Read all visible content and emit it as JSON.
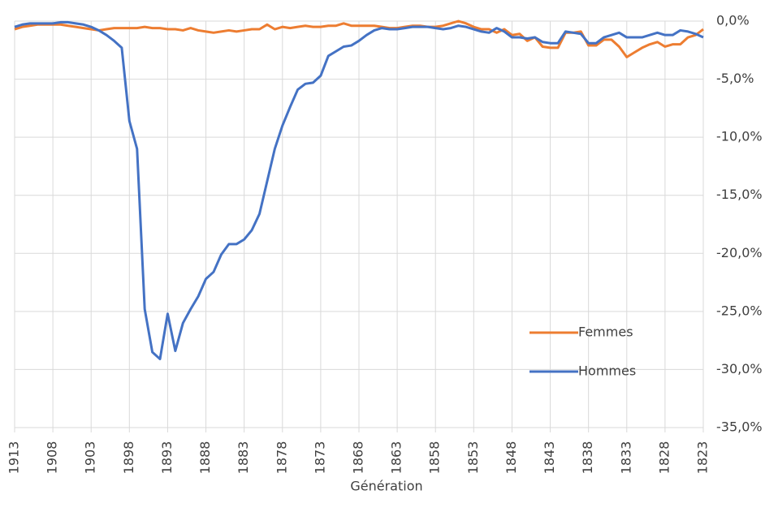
{
  "chart_data": {
    "type": "line",
    "x_label": "Génération",
    "x": [
      1913,
      1912,
      1911,
      1910,
      1909,
      1908,
      1907,
      1906,
      1905,
      1904,
      1903,
      1902,
      1901,
      1900,
      1899,
      1898,
      1897,
      1896,
      1895,
      1894,
      1893,
      1892,
      1891,
      1890,
      1889,
      1888,
      1887,
      1886,
      1885,
      1884,
      1883,
      1882,
      1881,
      1880,
      1879,
      1878,
      1877,
      1876,
      1875,
      1874,
      1873,
      1872,
      1871,
      1870,
      1869,
      1868,
      1867,
      1866,
      1865,
      1864,
      1863,
      1862,
      1861,
      1860,
      1859,
      1858,
      1857,
      1856,
      1855,
      1854,
      1853,
      1852,
      1851,
      1850,
      1849,
      1848,
      1847,
      1846,
      1845,
      1844,
      1843,
      1842,
      1841,
      1840,
      1839,
      1838,
      1837,
      1836,
      1835,
      1834,
      1833,
      1832,
      1831,
      1830,
      1829,
      1828,
      1827,
      1826,
      1825,
      1824,
      1823
    ],
    "series": [
      {
        "name": "Femmes",
        "color": "#ed7d31",
        "values": [
          -0.7,
          -0.5,
          -0.4,
          -0.3,
          -0.3,
          -0.3,
          -0.3,
          -0.4,
          -0.5,
          -0.6,
          -0.7,
          -0.8,
          -0.7,
          -0.6,
          -0.6,
          -0.6,
          -0.6,
          -0.5,
          -0.6,
          -0.6,
          -0.7,
          -0.7,
          -0.8,
          -0.6,
          -0.8,
          -0.9,
          -1.0,
          -0.9,
          -0.8,
          -0.9,
          -0.8,
          -0.7,
          -0.7,
          -0.3,
          -0.7,
          -0.5,
          -0.6,
          -0.5,
          -0.4,
          -0.5,
          -0.5,
          -0.4,
          -0.4,
          -0.2,
          -0.4,
          -0.4,
          -0.4,
          -0.4,
          -0.5,
          -0.6,
          -0.6,
          -0.5,
          -0.4,
          -0.4,
          -0.5,
          -0.5,
          -0.4,
          -0.2,
          0.0,
          -0.2,
          -0.5,
          -0.7,
          -0.7,
          -1.0,
          -0.7,
          -1.2,
          -1.1,
          -1.7,
          -1.4,
          -2.2,
          -2.3,
          -2.3,
          -1.0,
          -1.0,
          -0.9,
          -2.1,
          -2.1,
          -1.6,
          -1.6,
          -2.2,
          -3.1,
          -2.7,
          -2.3,
          -2.0,
          -1.8,
          -2.2,
          -2.0,
          -2.0,
          -1.4,
          -1.2,
          -0.7
        ]
      },
      {
        "name": "Hommes",
        "color": "#4472c4",
        "values": [
          -0.5,
          -0.3,
          -0.2,
          -0.2,
          -0.2,
          -0.2,
          -0.1,
          -0.1,
          -0.2,
          -0.3,
          -0.5,
          -0.8,
          -1.2,
          -1.7,
          -2.3,
          -8.6,
          -11.0,
          -24.8,
          -28.5,
          -29.1,
          -25.2,
          -28.4,
          -26.0,
          -24.8,
          -23.7,
          -22.2,
          -21.6,
          -20.1,
          -19.2,
          -19.2,
          -18.8,
          -18.0,
          -16.6,
          -13.8,
          -11.0,
          -9.0,
          -7.4,
          -5.9,
          -5.4,
          -5.3,
          -4.7,
          -3.0,
          -2.6,
          -2.2,
          -2.1,
          -1.7,
          -1.2,
          -0.8,
          -0.6,
          -0.7,
          -0.7,
          -0.6,
          -0.5,
          -0.5,
          -0.5,
          -0.6,
          -0.7,
          -0.6,
          -0.4,
          -0.5,
          -0.7,
          -0.9,
          -1.0,
          -0.6,
          -0.9,
          -1.4,
          -1.4,
          -1.5,
          -1.4,
          -1.8,
          -1.9,
          -1.9,
          -0.9,
          -1.0,
          -1.1,
          -1.9,
          -1.9,
          -1.4,
          -1.2,
          -1.0,
          -1.4,
          -1.4,
          -1.4,
          -1.2,
          -1.0,
          -1.2,
          -1.2,
          -0.8,
          -0.9,
          -1.1,
          -1.4
        ]
      }
    ],
    "xlim": [
      1913,
      1823
    ],
    "xticks": [
      1913,
      1908,
      1903,
      1898,
      1893,
      1888,
      1883,
      1878,
      1873,
      1868,
      1863,
      1858,
      1853,
      1848,
      1843,
      1838,
      1833,
      1828,
      1823
    ],
    "ylim": [
      -35,
      0
    ],
    "yticks": [
      {
        "value": 0,
        "label": "0,0%"
      },
      {
        "value": -5,
        "label": "-5,0%"
      },
      {
        "value": -10,
        "label": "-10,0%"
      },
      {
        "value": -15,
        "label": "-15,0%"
      },
      {
        "value": -20,
        "label": "-20,0%"
      },
      {
        "value": -25,
        "label": "-25,0%"
      },
      {
        "value": -30,
        "label": "-30,0%"
      },
      {
        "value": -35,
        "label": "-35,0%"
      }
    ],
    "y_axis_side": "right",
    "grid": true,
    "legend": "lower right"
  }
}
